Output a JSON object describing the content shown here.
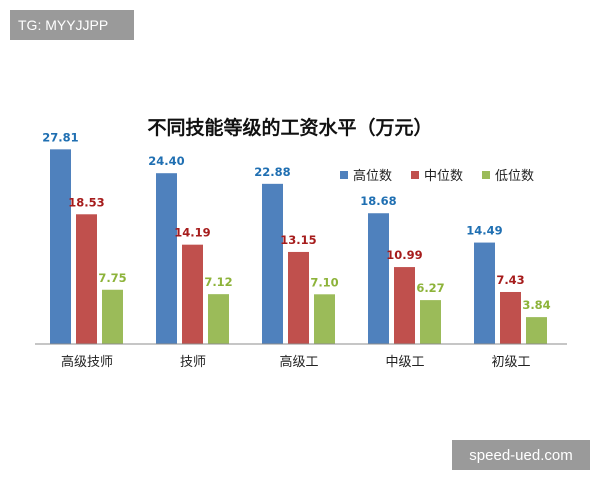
{
  "watermark_top": "TG: MYYJJPP",
  "watermark_bottom": "speed-ued.com",
  "chart_data": {
    "type": "bar",
    "title": "不同技能等级的工资水平（万元）",
    "categories": [
      "高级技师",
      "技师",
      "高级工",
      "中级工",
      "初级工"
    ],
    "series": [
      {
        "name": "高位数",
        "color": "#4f81bd",
        "label_color": "#1f6fb2",
        "values": [
          27.81,
          24.4,
          22.88,
          18.68,
          14.49
        ]
      },
      {
        "name": "中位数",
        "color": "#c0504d",
        "label_color": "#a61c1c",
        "values": [
          18.53,
          14.19,
          13.15,
          10.99,
          7.43
        ]
      },
      {
        "name": "低位数",
        "color": "#9bbb59",
        "label_color": "#8db33a",
        "values": [
          7.75,
          7.12,
          7.1,
          6.27,
          3.84
        ]
      }
    ],
    "ylim": [
      0,
      30
    ],
    "legend_position": "top-right",
    "grid": false,
    "xlabel": "",
    "ylabel": ""
  }
}
